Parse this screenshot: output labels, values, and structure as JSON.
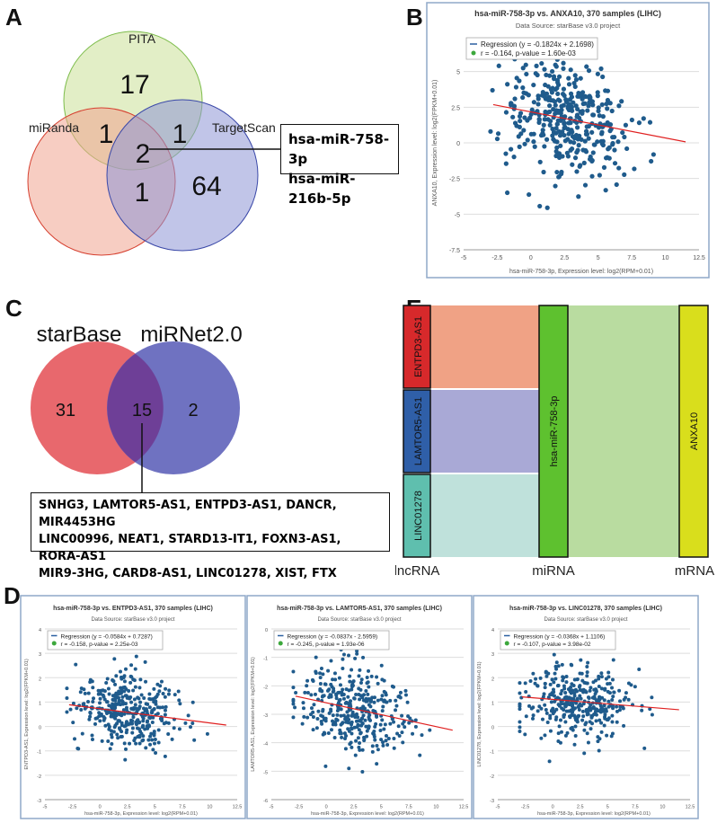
{
  "panels": {
    "A": "A",
    "B": "B",
    "C": "C",
    "D": "D",
    "E": "E"
  },
  "venn_a": {
    "labels": {
      "pita": "PITA",
      "miranda": "miRanda",
      "targetscan": "TargetScan"
    },
    "counts": {
      "pita_only": "17",
      "pita_miranda": "1",
      "pita_targetscan": "1",
      "center": "2",
      "miranda_targetscan": "1",
      "targetscan_only": "64"
    },
    "callout": [
      "hsa-miR-758-3p",
      "hsa-miR-216b-5p"
    ]
  },
  "venn_c": {
    "labels": {
      "starbase": "starBase",
      "mirnet": "miRNet2.0"
    },
    "counts": {
      "left": "31",
      "overlap": "15",
      "right": "2"
    },
    "genes": [
      "SNHG3, LAMTOR5-AS1, ENTPD3-AS1, DANCR, MIR4453HG",
      "LINC00996, NEAT1, STARD13-IT1, FOXN3-AS1, RORA-AS1",
      "MIR9-3HG, CARD8-AS1, LINC01278, XIST, FTX"
    ]
  },
  "sankey": {
    "lncrna": [
      "ENTPD3-AS1",
      "LAMTOR5-AS1",
      "LINC01278"
    ],
    "mirna": "hsa-miR-758-3p",
    "mrna": "ANXA10",
    "axis_labels": {
      "lncrna": "lncRNA",
      "mirna": "miRNA",
      "mrna": "mRNA"
    },
    "colors": {
      "entpd3": "#d7292b",
      "lamtor5": "#2f5fa8",
      "linc01278": "#5fbfae",
      "mir": "#5ec12f",
      "mrna": "#d9de1c"
    }
  },
  "chart_data": [
    {
      "id": "B",
      "type": "scatter",
      "title": "hsa-miR-758-3p vs. ANXA10, 370 samples (LIHC)",
      "subtitle": "Data Source: starBase v3.0 project",
      "legend": [
        "Regression (y = -0.1824x + 2.1698)",
        "r = -0.164, p-value = 1.60e-03"
      ],
      "xlabel": "hsa-miR-758-3p, Expression level: log2(RPM+0.01)",
      "ylabel": "ANXA10, Expression level: log2(FPKM+0.01)",
      "xlim": [
        -5,
        12.5
      ],
      "ylim": [
        -7.5,
        7.5
      ],
      "xticks": [
        "-5",
        "-2.5",
        "0",
        "2.5",
        "5",
        "7.5",
        "10",
        "12.5"
      ],
      "yticks": [
        "-7.5",
        "-5",
        "-2.5",
        "0",
        "2.5",
        "5"
      ],
      "regression": {
        "slope": -0.1824,
        "intercept": 2.1698,
        "x": [
          -2.8,
          11.5
        ]
      },
      "n_points": 370,
      "x_mean": 2.6,
      "x_sd": 2.3,
      "y_sd": 2.1
    },
    {
      "id": "D1",
      "type": "scatter",
      "title": "hsa-miR-758-3p vs. ENTPD3-AS1, 370 samples (LIHC)",
      "subtitle": "Data Source: starBase v3.0 project",
      "legend": [
        "Regression (y = -0.0584x + 0.7287)",
        "r = -0.158, p-value = 2.25e-03"
      ],
      "xlabel": "hsa-miR-758-3p, Expression level: log2(RPM+0.01)",
      "ylabel": "ENTPD3-AS1, Expression level: log2(FPKM+0.01)",
      "xlim": [
        -5,
        12.5
      ],
      "ylim": [
        -3,
        4
      ],
      "xticks": [
        "-5",
        "-2.5",
        "0",
        "2.5",
        "5",
        "7.5",
        "10",
        "12.5"
      ],
      "yticks": [
        "-3",
        "-2",
        "-1",
        "0",
        "1",
        "2",
        "3",
        "4"
      ],
      "regression": {
        "slope": -0.0584,
        "intercept": 0.7287,
        "x": [
          -2.8,
          11.5
        ]
      },
      "n_points": 370,
      "x_mean": 2.6,
      "x_sd": 2.3,
      "y_sd": 0.75
    },
    {
      "id": "D2",
      "type": "scatter",
      "title": "hsa-miR-758-3p vs. LAMTOR5-AS1, 370 samples (LIHC)",
      "subtitle": "Data Source: starBase v3.0 project",
      "legend": [
        "Regression (y = -0.0837x - 2.5959)",
        "r = -0.245, p-value = 1.93e-06"
      ],
      "xlabel": "hsa-miR-758-3p, Expression level: log2(RPM+0.01)",
      "ylabel": "LAMTOR5-AS1, Expression level: log2(FPKM+0.01)",
      "xlim": [
        -5,
        12.5
      ],
      "ylim": [
        -6,
        0
      ],
      "xticks": [
        "-5",
        "-2.5",
        "0",
        "2.5",
        "5",
        "7.5",
        "10",
        "12.5"
      ],
      "yticks": [
        "-6",
        "-5",
        "-4",
        "-3",
        "-2",
        "-1",
        "0"
      ],
      "regression": {
        "slope": -0.0837,
        "intercept": -2.5959,
        "x": [
          -2.8,
          11.5
        ]
      },
      "n_points": 370,
      "x_mean": 2.6,
      "x_sd": 2.3,
      "y_sd": 0.75
    },
    {
      "id": "D3",
      "type": "scatter",
      "title": "hsa-miR-758-3p vs. LINC01278, 370 samples (LIHC)",
      "subtitle": "Data Source: starBase v3.0 project",
      "legend": [
        "Regression (y = -0.0368x + 1.1106)",
        "r = -0.107, p-value = 3.98e-02"
      ],
      "xlabel": "hsa-miR-758-3p, Expression level: log2(RPM+0.01)",
      "ylabel": "LINC01278, Expression level: log2(FPKM+0.01)",
      "xlim": [
        -5,
        12.5
      ],
      "ylim": [
        -3,
        4
      ],
      "xticks": [
        "-5",
        "-2.5",
        "0",
        "2.5",
        "5",
        "7.5",
        "10",
        "12.5"
      ],
      "yticks": [
        "-3",
        "-2",
        "-1",
        "0",
        "1",
        "2",
        "3",
        "4"
      ],
      "regression": {
        "slope": -0.0368,
        "intercept": 1.1106,
        "x": [
          -2.8,
          11.5
        ]
      },
      "n_points": 370,
      "x_mean": 2.6,
      "x_sd": 2.3,
      "y_sd": 0.75
    }
  ]
}
